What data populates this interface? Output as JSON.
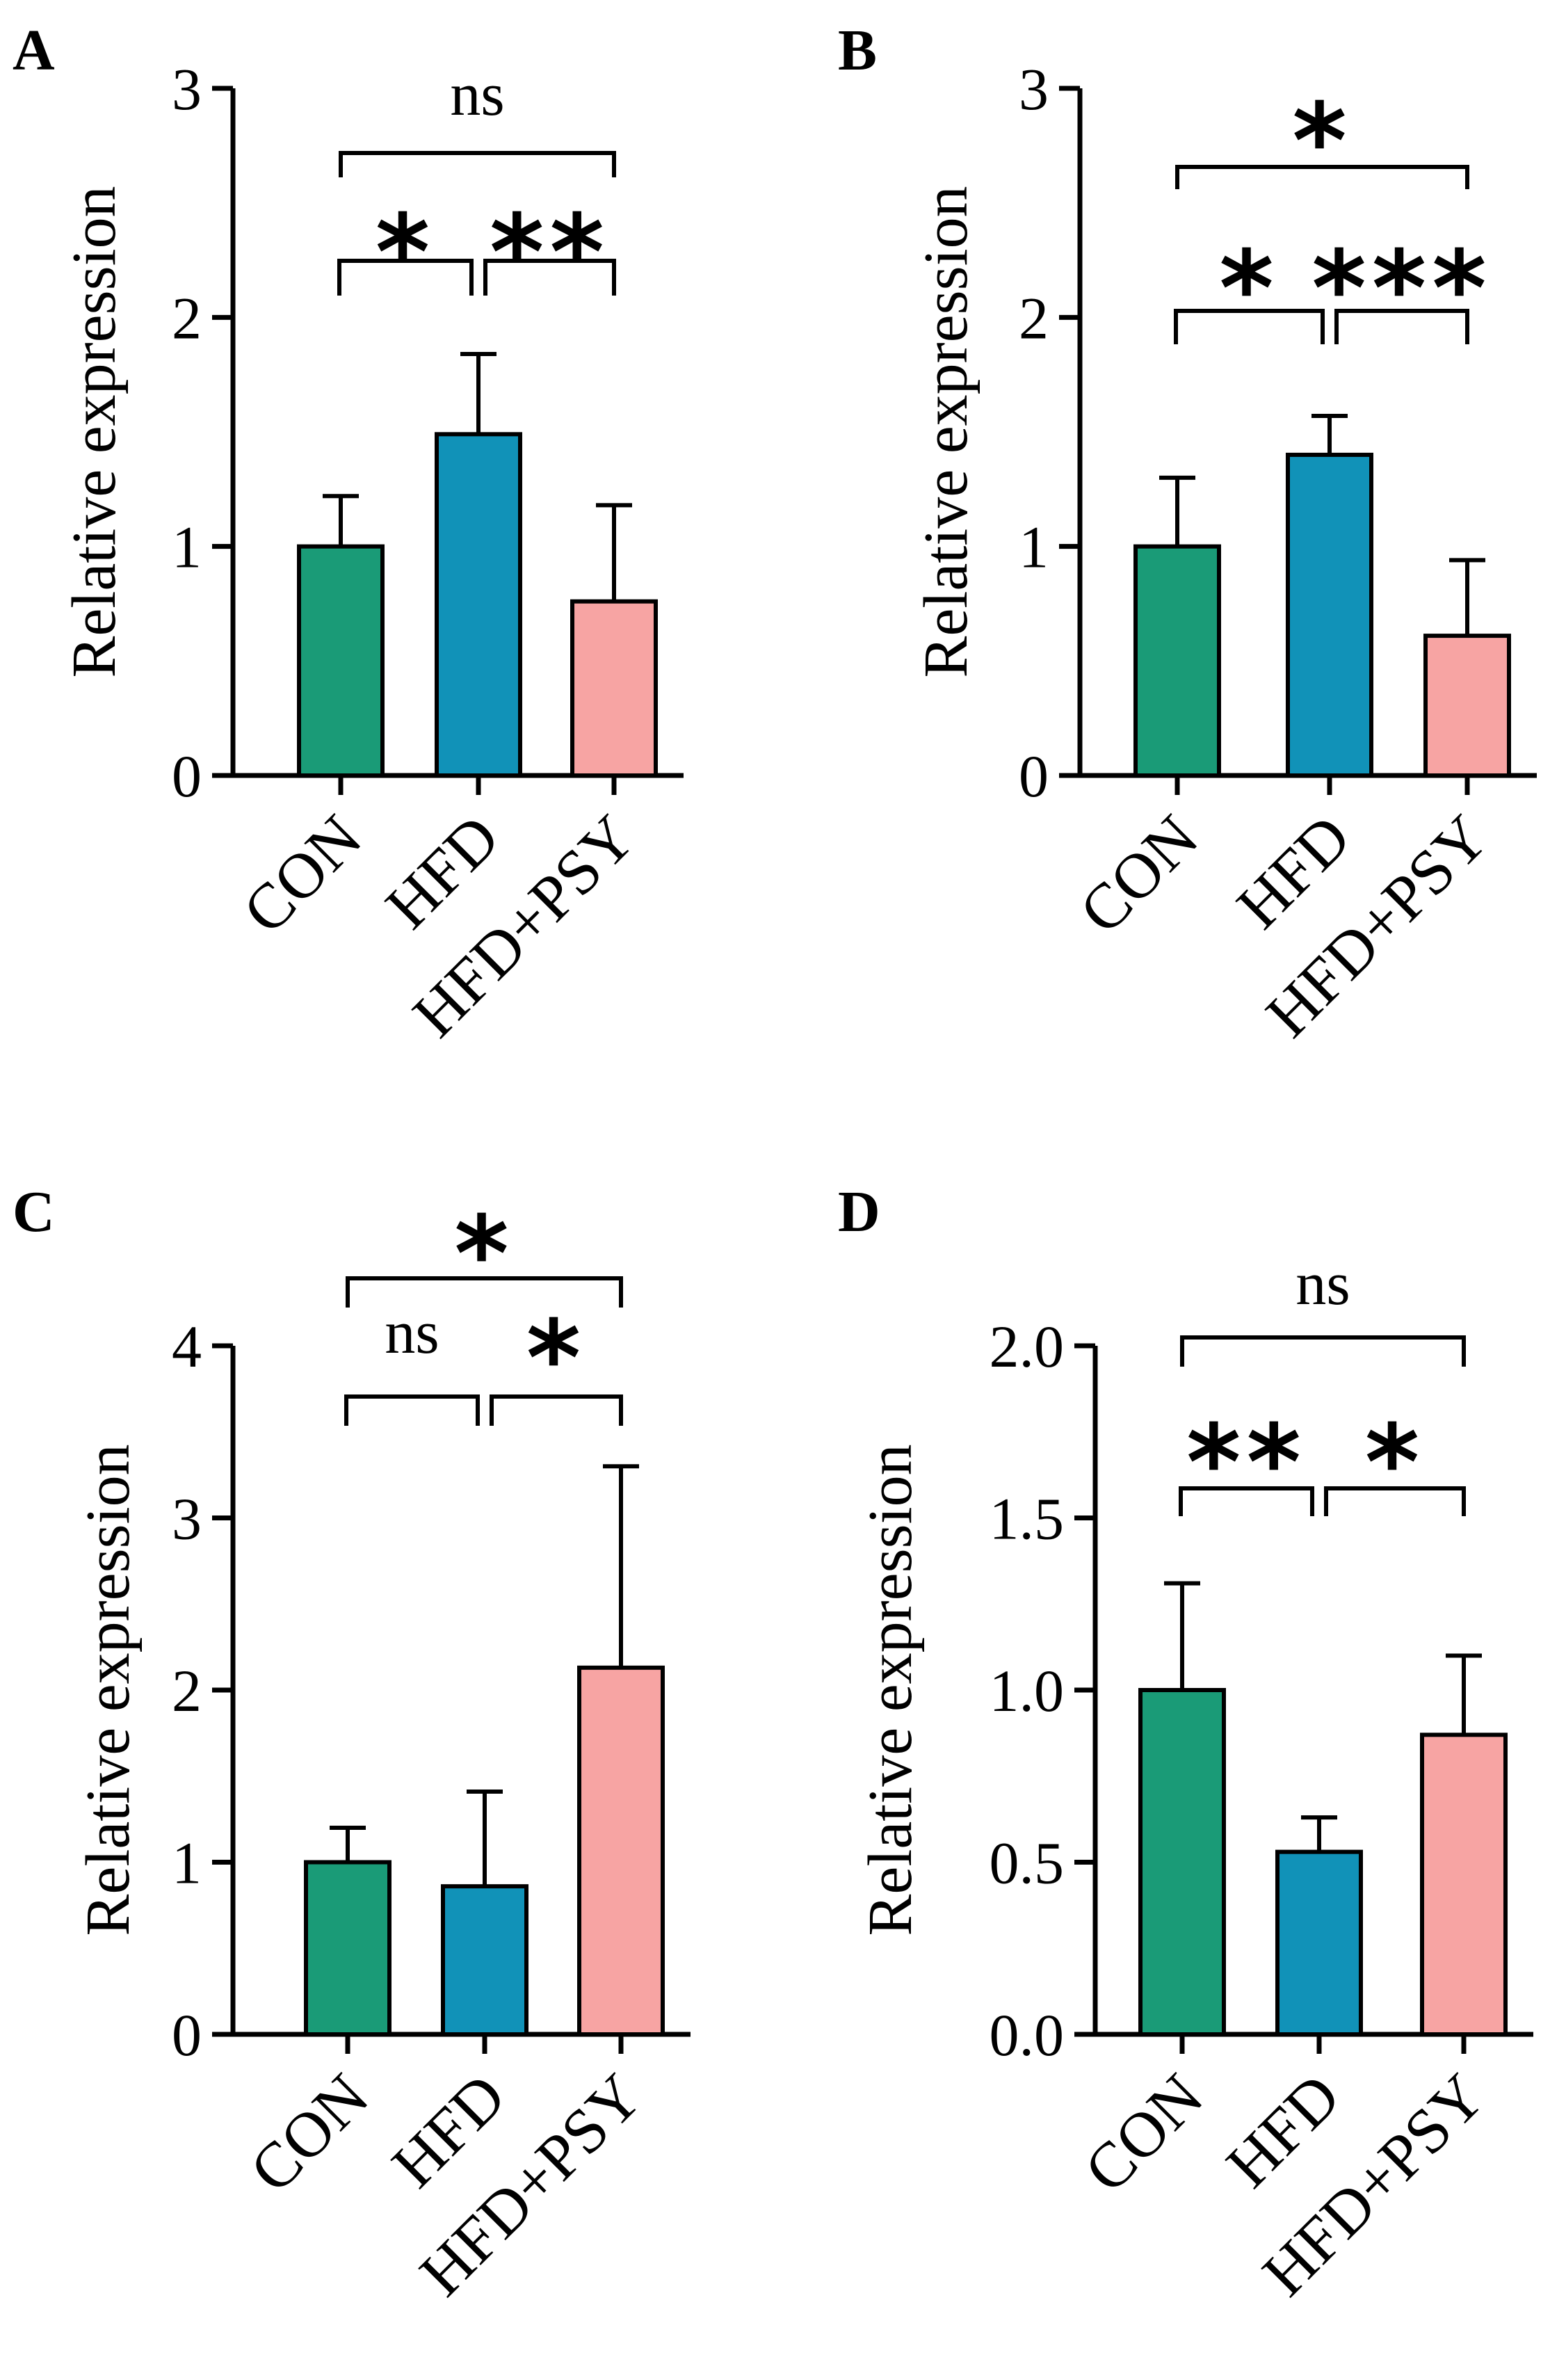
{
  "chart_data": [
    {
      "panel": "A",
      "type": "bar",
      "categories": [
        "CON",
        "HFD",
        "HFD+PSY"
      ],
      "values": [
        1.0,
        1.49,
        0.76
      ],
      "errors": [
        0.22,
        0.35,
        0.42
      ],
      "ylabel": "Relative expression",
      "ylim": [
        0,
        3
      ],
      "yticks": [
        "0",
        "1",
        "2",
        "3"
      ],
      "colors": [
        "#1a9b77",
        "#1192b8",
        "#f7a4a3"
      ],
      "significance": [
        {
          "from": 0,
          "to": 1,
          "label": "*",
          "level": 1
        },
        {
          "from": 1,
          "to": 2,
          "label": "**",
          "level": 1
        },
        {
          "from": 0,
          "to": 2,
          "label": "ns",
          "level": 2
        }
      ]
    },
    {
      "panel": "B",
      "type": "bar",
      "categories": [
        "CON",
        "HFD",
        "HFD+PSY"
      ],
      "values": [
        1.0,
        1.4,
        0.61
      ],
      "errors": [
        0.3,
        0.17,
        0.33
      ],
      "ylabel": "Relative expression",
      "ylim": [
        0,
        3
      ],
      "yticks": [
        "0",
        "1",
        "2",
        "3"
      ],
      "colors": [
        "#1a9b77",
        "#1192b8",
        "#f7a4a3"
      ],
      "significance": [
        {
          "from": 0,
          "to": 1,
          "label": "*",
          "level": 1
        },
        {
          "from": 1,
          "to": 2,
          "label": "***",
          "level": 1
        },
        {
          "from": 0,
          "to": 2,
          "label": "*",
          "level": 2
        }
      ]
    },
    {
      "panel": "C",
      "type": "bar",
      "categories": [
        "CON",
        "HFD",
        "HFD+PSY"
      ],
      "values": [
        1.0,
        0.86,
        2.13
      ],
      "errors": [
        0.2,
        0.55,
        1.17
      ],
      "ylabel": "Relative expression",
      "ylim": [
        0,
        4
      ],
      "yticks": [
        "0",
        "1",
        "2",
        "3",
        "4"
      ],
      "colors": [
        "#1a9b77",
        "#1192b8",
        "#f7a4a3"
      ],
      "significance": [
        {
          "from": 0,
          "to": 1,
          "label": "ns",
          "level": 1
        },
        {
          "from": 1,
          "to": 2,
          "label": "*",
          "level": 1
        },
        {
          "from": 0,
          "to": 2,
          "label": "*",
          "level": 2
        }
      ]
    },
    {
      "panel": "D",
      "type": "bar",
      "categories": [
        "CON",
        "HFD",
        "HFD+PSY"
      ],
      "values": [
        1.0,
        0.53,
        0.87
      ],
      "errors": [
        0.31,
        0.1,
        0.23
      ],
      "ylabel": "Relative expression",
      "ylim": [
        0,
        2
      ],
      "yticks": [
        "0.0",
        "0.5",
        "1.0",
        "1.5",
        "2.0"
      ],
      "colors": [
        "#1a9b77",
        "#1192b8",
        "#f7a4a3"
      ],
      "significance": [
        {
          "from": 0,
          "to": 1,
          "label": "**",
          "level": 1
        },
        {
          "from": 1,
          "to": 2,
          "label": "*",
          "level": 1
        },
        {
          "from": 0,
          "to": 2,
          "label": "ns",
          "level": 2
        }
      ]
    }
  ]
}
